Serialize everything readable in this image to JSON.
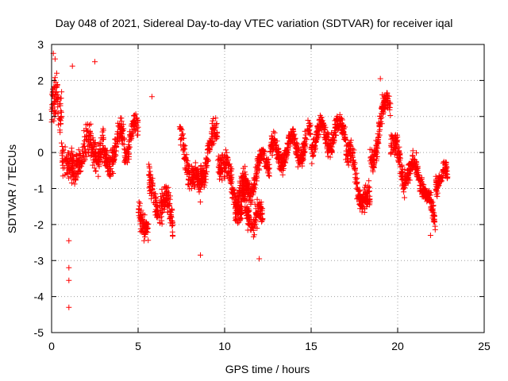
{
  "chart_data": {
    "type": "scatter",
    "title": "Day 048 of 2021, Sidereal Day-to-day VTEC variation (SDTVAR) for receiver iqal",
    "xlabel": "GPS time / hours",
    "ylabel": "SDTVAR / TECUs",
    "xlim": [
      0,
      25
    ],
    "ylim": [
      -5,
      3
    ],
    "xticks": [
      "0",
      "5",
      "10",
      "15",
      "20",
      "25"
    ],
    "yticks": [
      "3",
      "2",
      "1",
      "0",
      "-1",
      "-2",
      "-3",
      "-4",
      "-5"
    ],
    "grid": true,
    "marker": "+",
    "series_color": "#ff0000",
    "segments": [
      {
        "x0": 0.0,
        "x1": 0.6,
        "y0": 1.2,
        "y1": 1.0,
        "spread": 0.9
      },
      {
        "x0": 0.6,
        "x1": 1.4,
        "y0": 0.2,
        "y1": -1.0,
        "spread": 0.7
      },
      {
        "x0": 1.4,
        "x1": 3.0,
        "y0": 0.0,
        "y1": 0.2,
        "spread": 0.6
      },
      {
        "x0": 3.0,
        "x1": 4.2,
        "y0": -0.2,
        "y1": 0.4,
        "spread": 0.5
      },
      {
        "x0": 4.2,
        "x1": 5.0,
        "y0": 0.1,
        "y1": 0.6,
        "spread": 0.4
      },
      {
        "x0": 5.0,
        "x1": 5.6,
        "y0": -1.2,
        "y1": -2.4,
        "spread": 0.5
      },
      {
        "x0": 5.6,
        "x1": 7.0,
        "y0": -1.0,
        "y1": -1.8,
        "spread": 0.6
      },
      {
        "x0": 7.4,
        "x1": 8.6,
        "y0": 0.4,
        "y1": -1.2,
        "spread": 0.5
      },
      {
        "x0": 8.6,
        "x1": 9.6,
        "y0": -0.5,
        "y1": 0.5,
        "spread": 0.5
      },
      {
        "x0": 9.6,
        "x1": 11.0,
        "y0": 0.0,
        "y1": -1.6,
        "spread": 0.6
      },
      {
        "x0": 11.0,
        "x1": 12.2,
        "y0": -1.4,
        "y1": -2.0,
        "spread": 0.5
      },
      {
        "x0": 10.6,
        "x1": 12.6,
        "y0": -1.4,
        "y1": -0.1,
        "spread": 0.4
      },
      {
        "x0": 12.6,
        "x1": 15.0,
        "y0": -0.1,
        "y1": 0.3,
        "spread": 0.4
      },
      {
        "x0": 15.0,
        "x1": 17.0,
        "y0": 0.4,
        "y1": 0.6,
        "spread": 0.4
      },
      {
        "x0": 17.0,
        "x1": 18.4,
        "y0": 0.0,
        "y1": -1.6,
        "spread": 0.5
      },
      {
        "x0": 18.4,
        "x1": 19.6,
        "y0": -0.2,
        "y1": 1.6,
        "spread": 0.5
      },
      {
        "x0": 19.6,
        "x1": 20.4,
        "y0": 0.6,
        "y1": -1.0,
        "spread": 0.5
      },
      {
        "x0": 20.4,
        "x1": 21.6,
        "y0": -0.4,
        "y1": -0.8,
        "spread": 0.4
      },
      {
        "x0": 21.6,
        "x1": 22.2,
        "y0": -1.4,
        "y1": -1.8,
        "spread": 0.4
      },
      {
        "x0": 22.2,
        "x1": 22.9,
        "y0": -0.6,
        "y1": -0.8,
        "spread": 0.4
      }
    ],
    "outliers": [
      {
        "x": 0.1,
        "y": 2.75
      },
      {
        "x": 0.2,
        "y": 2.6
      },
      {
        "x": 0.3,
        "y": 2.2
      },
      {
        "x": 1.0,
        "y": -3.2
      },
      {
        "x": 1.0,
        "y": -3.55
      },
      {
        "x": 1.0,
        "y": -4.3
      },
      {
        "x": 1.0,
        "y": -2.45
      },
      {
        "x": 1.2,
        "y": 2.4
      },
      {
        "x": 2.5,
        "y": 2.52
      },
      {
        "x": 5.8,
        "y": 1.55
      },
      {
        "x": 7.0,
        "y": -2.3
      },
      {
        "x": 8.6,
        "y": -2.85
      },
      {
        "x": 12.0,
        "y": -2.95
      },
      {
        "x": 19.0,
        "y": 2.05
      },
      {
        "x": 21.9,
        "y": -2.3
      }
    ]
  }
}
